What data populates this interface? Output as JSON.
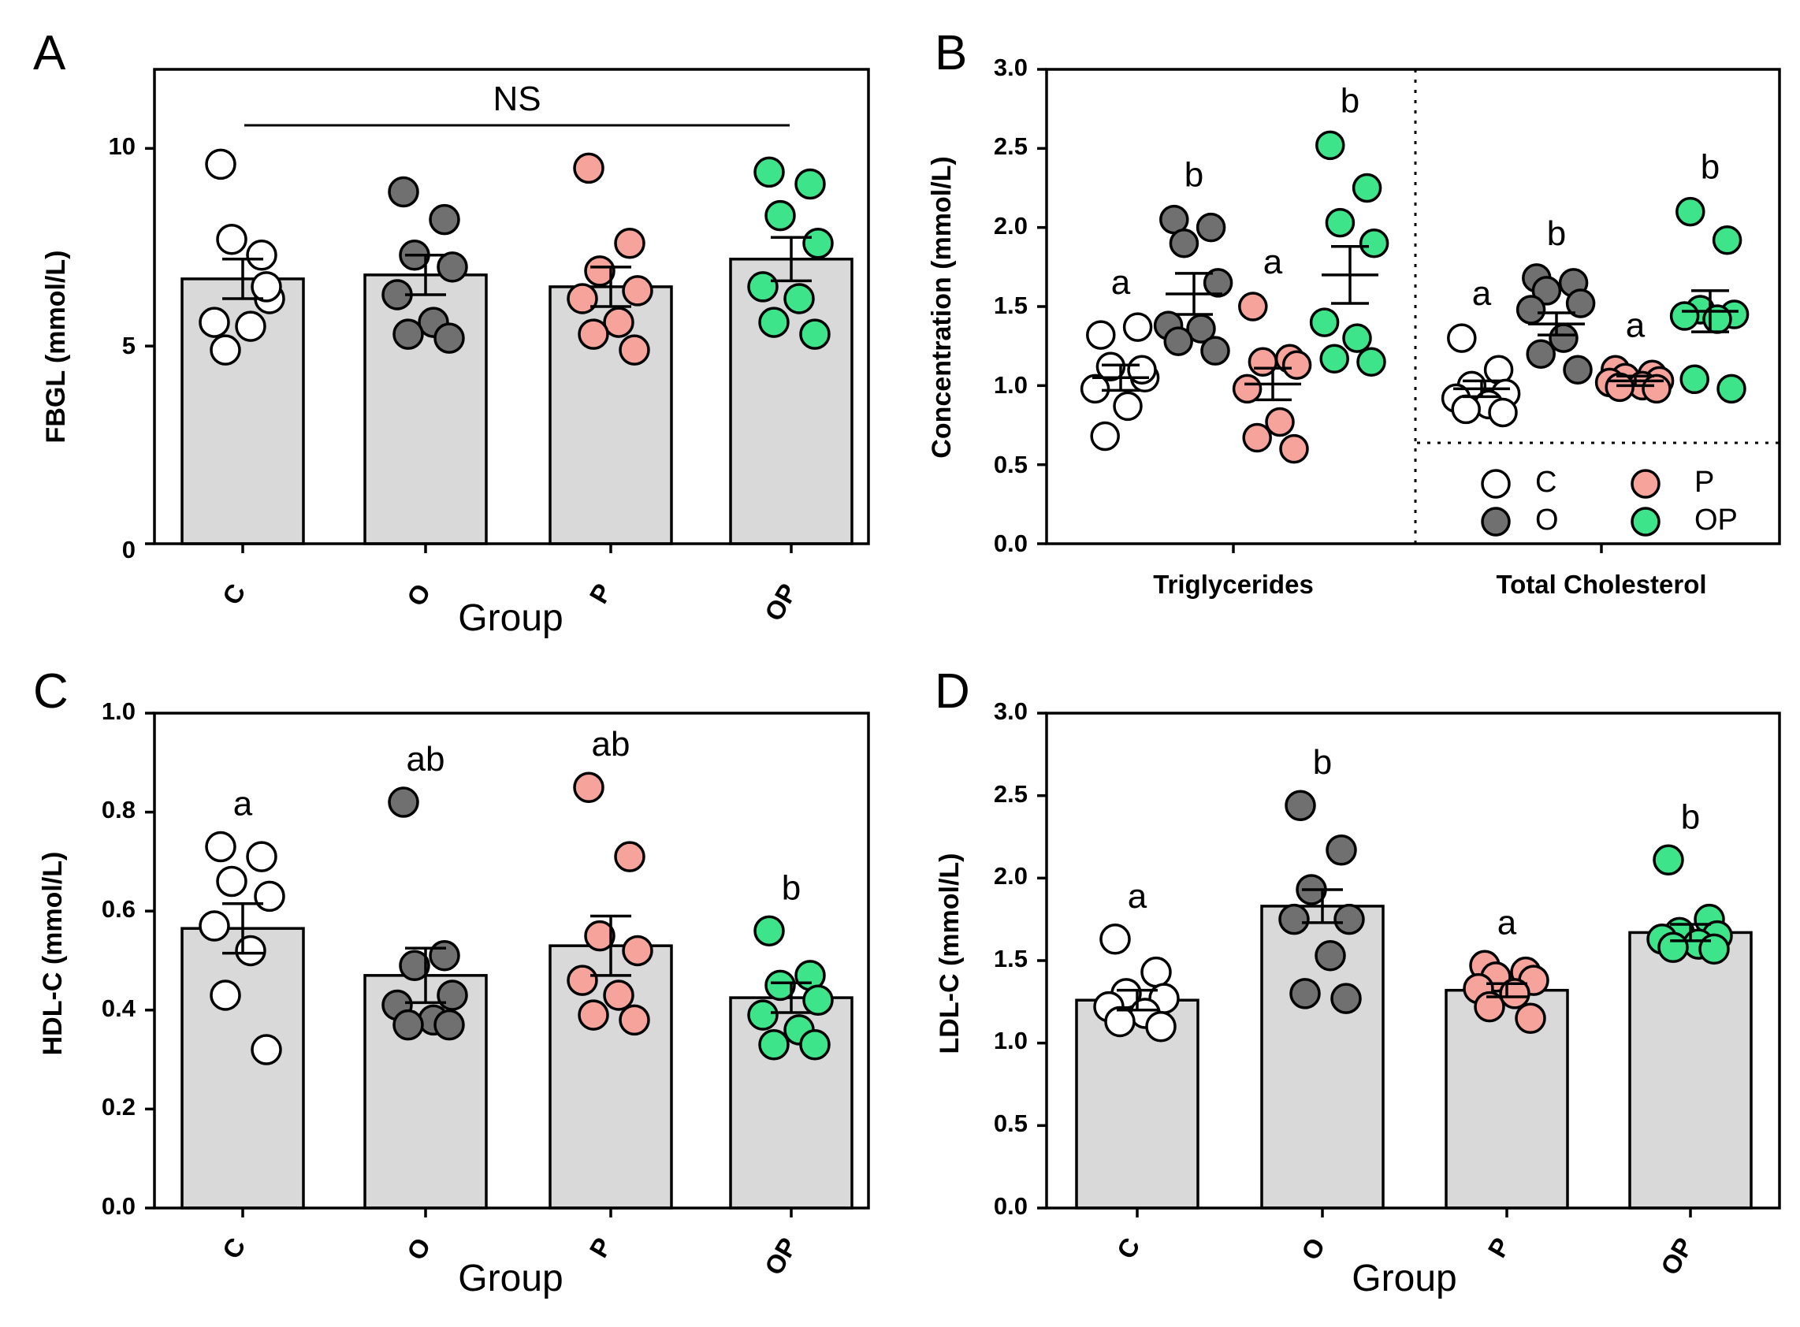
{
  "group_colors": {
    "C": "#ffffff",
    "O": "#707070",
    "P": "#f5a39b",
    "OP": "#3de48a"
  },
  "bar_fill": "#d9d9d9",
  "chart_data": [
    {
      "panel": "A",
      "type": "bar",
      "ylabel": "FBGL (mmol/L)",
      "xlabel": "Group",
      "categories": [
        "C",
        "O",
        "P",
        "OP"
      ],
      "ylim": [
        0,
        12
      ],
      "yticks": [
        0,
        5,
        10
      ],
      "ytick_labels": [
        "0",
        "5",
        "10"
      ],
      "means": [
        6.7,
        6.8,
        6.5,
        7.2
      ],
      "sem": [
        0.5,
        0.5,
        0.5,
        0.55
      ],
      "points": [
        [
          9.6,
          7.3,
          7.7,
          6.2,
          5.6,
          5.5,
          4.9,
          6.5
        ],
        [
          8.9,
          8.2,
          7.3,
          7.0,
          6.3,
          5.6,
          5.3,
          5.2
        ],
        [
          9.5,
          7.6,
          6.9,
          6.4,
          6.2,
          5.6,
          5.3,
          4.9
        ],
        [
          9.4,
          9.1,
          8.3,
          7.6,
          6.5,
          6.2,
          5.6,
          5.3
        ]
      ],
      "annotation": "NS"
    },
    {
      "panel": "B",
      "type": "scatter",
      "ylabel": "Concentration (mmol/L)",
      "ylim": [
        0,
        3
      ],
      "yticks": [
        0,
        0.5,
        1,
        1.5,
        2,
        2.5,
        3
      ],
      "ytick_labels": [
        "0.0",
        "0.5",
        "1.0",
        "1.5",
        "2.0",
        "2.5",
        "3.0"
      ],
      "sections": [
        "Triglycerides",
        "Total Cholesterol"
      ],
      "series": [
        {
          "section": "Triglycerides",
          "group": "C",
          "mean": 1.05,
          "sem": 0.08,
          "letter": "a",
          "points": [
            1.32,
            1.37,
            1.12,
            1.05,
            0.98,
            0.87,
            0.68,
            1.1
          ]
        },
        {
          "section": "Triglycerides",
          "group": "O",
          "mean": 1.58,
          "sem": 0.13,
          "letter": "b",
          "points": [
            2.05,
            2.0,
            1.9,
            1.65,
            1.38,
            1.36,
            1.28,
            1.22
          ]
        },
        {
          "section": "Triglycerides",
          "group": "P",
          "mean": 1.01,
          "sem": 0.1,
          "letter": "a",
          "points": [
            1.5,
            1.17,
            1.15,
            1.13,
            0.98,
            0.77,
            0.67,
            0.6
          ]
        },
        {
          "section": "Triglycerides",
          "group": "OP",
          "mean": 1.7,
          "sem": 0.18,
          "letter": "b",
          "points": [
            2.52,
            2.25,
            2.03,
            1.9,
            1.4,
            1.3,
            1.17,
            1.15
          ]
        },
        {
          "section": "Total Cholesterol",
          "group": "C",
          "mean": 0.98,
          "sem": 0.05,
          "letter": "a",
          "points": [
            1.3,
            1.1,
            1.0,
            0.95,
            0.92,
            0.88,
            0.85,
            0.83
          ]
        },
        {
          "section": "Total Cholesterol",
          "group": "O",
          "mean": 1.39,
          "sem": 0.07,
          "letter": "b",
          "points": [
            1.68,
            1.65,
            1.6,
            1.52,
            1.48,
            1.3,
            1.2,
            1.1
          ]
        },
        {
          "section": "Total Cholesterol",
          "group": "P",
          "mean": 1.03,
          "sem": 0.03,
          "letter": "a",
          "points": [
            1.1,
            1.07,
            1.05,
            1.03,
            1.02,
            1.0,
            0.99,
            0.98
          ]
        },
        {
          "section": "Total Cholesterol",
          "group": "OP",
          "mean": 1.47,
          "sem": 0.13,
          "letter": "b",
          "points": [
            2.1,
            1.92,
            1.48,
            1.45,
            1.44,
            1.42,
            1.04,
            0.98
          ]
        }
      ],
      "legend": [
        {
          "group": "C",
          "label": "C"
        },
        {
          "group": "P",
          "label": "P"
        },
        {
          "group": "O",
          "label": "O"
        },
        {
          "group": "OP",
          "label": "OP"
        }
      ],
      "legend_placement": "bottom-right"
    },
    {
      "panel": "C",
      "type": "bar",
      "ylabel": "HDL-C (mmol/L)",
      "xlabel": "Group",
      "categories": [
        "C",
        "O",
        "P",
        "OP"
      ],
      "ylim": [
        0,
        1
      ],
      "yticks": [
        0,
        0.2,
        0.4,
        0.6,
        0.8,
        1
      ],
      "ytick_labels": [
        "0.0",
        "0.2",
        "0.4",
        "0.6",
        "0.8",
        "1.0"
      ],
      "means": [
        0.565,
        0.47,
        0.53,
        0.425
      ],
      "sem": [
        0.05,
        0.055,
        0.06,
        0.03
      ],
      "points": [
        [
          0.73,
          0.71,
          0.66,
          0.63,
          0.57,
          0.52,
          0.43,
          0.32
        ],
        [
          0.82,
          0.51,
          0.49,
          0.43,
          0.41,
          0.38,
          0.37,
          0.37
        ],
        [
          0.85,
          0.71,
          0.55,
          0.52,
          0.46,
          0.43,
          0.39,
          0.38
        ],
        [
          0.56,
          0.47,
          0.45,
          0.42,
          0.39,
          0.36,
          0.33,
          0.33
        ]
      ],
      "letters": [
        "a",
        "ab",
        "ab",
        "b"
      ]
    },
    {
      "panel": "D",
      "type": "bar",
      "ylabel": "LDL-C (mmol/L)",
      "xlabel": "Group",
      "categories": [
        "C",
        "O",
        "P",
        "OP"
      ],
      "ylim": [
        0,
        3
      ],
      "yticks": [
        0,
        0.5,
        1,
        1.5,
        2,
        2.5,
        3
      ],
      "ytick_labels": [
        "0.0",
        "0.5",
        "1.0",
        "1.5",
        "2.0",
        "2.5",
        "3.0"
      ],
      "means": [
        1.26,
        1.83,
        1.32,
        1.67
      ],
      "sem": [
        0.06,
        0.1,
        0.04,
        0.05
      ],
      "points": [
        [
          1.63,
          1.43,
          1.3,
          1.27,
          1.22,
          1.18,
          1.13,
          1.1
        ],
        [
          2.44,
          2.17,
          1.93,
          1.75,
          1.75,
          1.53,
          1.3,
          1.27
        ],
        [
          1.47,
          1.43,
          1.4,
          1.38,
          1.33,
          1.3,
          1.22,
          1.15
        ],
        [
          2.11,
          1.75,
          1.67,
          1.65,
          1.63,
          1.6,
          1.58,
          1.57
        ]
      ],
      "letters": [
        "a",
        "b",
        "a",
        "b"
      ]
    }
  ]
}
